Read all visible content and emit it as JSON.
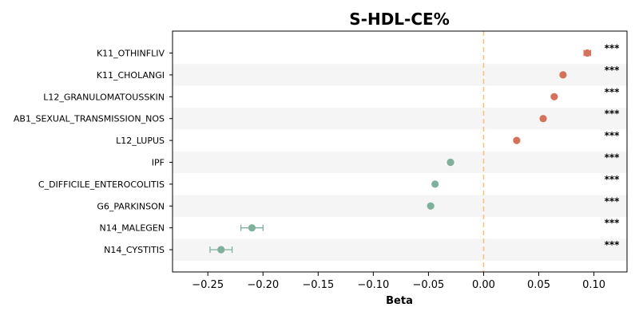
{
  "chart_data": {
    "type": "scatter",
    "title": "S-HDL-CE%",
    "xlabel": "Beta",
    "ylabel": "",
    "xlim": [
      -0.282,
      0.13
    ],
    "xticks": [
      -0.25,
      -0.2,
      -0.15,
      -0.1,
      -0.05,
      0.0,
      0.05,
      0.1
    ],
    "xtick_labels": [
      "−0.25",
      "−0.20",
      "−0.15",
      "−0.10",
      "−0.05",
      "0.00",
      "0.05",
      "0.10"
    ],
    "reference_line": 0.0,
    "grid": false,
    "colors": {
      "positive": "#d4735b",
      "negative": "#7fb09b",
      "reference": "#f5c27a",
      "band": "#f5f5f5"
    },
    "points": [
      {
        "category": "K11_OTHINFLIV",
        "beta": 0.094,
        "ci_low": 0.091,
        "ci_high": 0.097,
        "significance": "***"
      },
      {
        "category": "K11_CHOLANGI",
        "beta": 0.072,
        "ci_low": 0.07,
        "ci_high": 0.074,
        "significance": "***"
      },
      {
        "category": "L12_GRANULOMATOUSSKIN",
        "beta": 0.064,
        "ci_low": 0.062,
        "ci_high": 0.066,
        "significance": "***"
      },
      {
        "category": "AB1_SEXUAL_TRANSMISSION_NOS",
        "beta": 0.054,
        "ci_low": 0.052,
        "ci_high": 0.056,
        "significance": "***"
      },
      {
        "category": "L12_LUPUS",
        "beta": 0.03,
        "ci_low": 0.028,
        "ci_high": 0.032,
        "significance": "***"
      },
      {
        "category": "IPF",
        "beta": -0.03,
        "ci_low": -0.032,
        "ci_high": -0.028,
        "significance": "***"
      },
      {
        "category": "C_DIFFICILE_ENTEROCOLITIS",
        "beta": -0.044,
        "ci_low": -0.046,
        "ci_high": -0.042,
        "significance": "***"
      },
      {
        "category": "G6_PARKINSON",
        "beta": -0.048,
        "ci_low": -0.05,
        "ci_high": -0.046,
        "significance": "***"
      },
      {
        "category": "N14_MALEGEN",
        "beta": -0.21,
        "ci_low": -0.22,
        "ci_high": -0.2,
        "significance": "***"
      },
      {
        "category": "N14_CYSTITIS",
        "beta": -0.238,
        "ci_low": -0.248,
        "ci_high": -0.228,
        "significance": "***"
      }
    ]
  }
}
